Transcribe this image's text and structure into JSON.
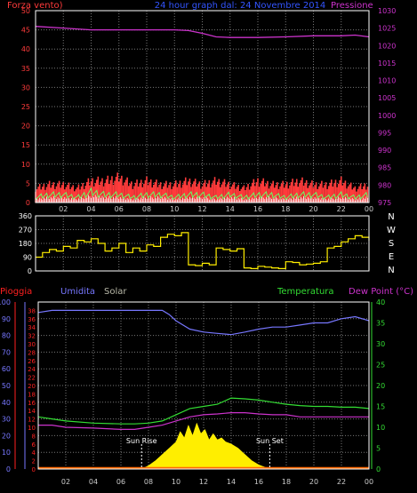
{
  "colors": {
    "background": "#000000",
    "frame": "#ffffff",
    "grid": "#777777",
    "wind": "#ff3b3b",
    "gust": "#66ff66",
    "wind_fill": "#ffffff",
    "pressure": "#cc33cc",
    "direction": "#ffee00",
    "rain": "#ff2020",
    "humidity": "#7777ff",
    "solar": "#ffee00",
    "temperature": "#33dd33",
    "dewpoint": "#cc33cc",
    "sun_marker": "#ffffff"
  },
  "chart_data": [
    {
      "type": "line",
      "name": "wind-pressure",
      "title": "24 hour graph dal:  24 Novembre 2014",
      "left_label": "Forza vento)",
      "right_label": "Pressione",
      "x_ticks": [
        "02",
        "04",
        "06",
        "08",
        "10",
        "12",
        "14",
        "16",
        "18",
        "20",
        "22",
        "00"
      ],
      "y_left": {
        "range": [
          0,
          50
        ],
        "ticks": [
          0,
          5,
          10,
          15,
          20,
          25,
          30,
          35,
          40,
          45,
          50
        ]
      },
      "y_right": {
        "range": [
          975,
          1030
        ],
        "ticks": [
          975,
          980,
          985,
          990,
          995,
          1000,
          1005,
          1010,
          1015,
          1020,
          1025,
          1030
        ]
      },
      "x_range": [
        0,
        24
      ],
      "series": [
        {
          "name": "Pressione",
          "axis": "right",
          "x": [
            0,
            2,
            4,
            6,
            8,
            9,
            10,
            11,
            12,
            13,
            14,
            15,
            16,
            18,
            20,
            22,
            23,
            24
          ],
          "y": [
            1025.5,
            1025,
            1024.5,
            1024.5,
            1024.5,
            1024.5,
            1024.5,
            1024.3,
            1023.5,
            1022.5,
            1022.3,
            1022.3,
            1022.3,
            1022.5,
            1022.8,
            1022.8,
            1023,
            1022.5
          ]
        },
        {
          "name": "wind",
          "axis": "left",
          "x": [
            0,
            1,
            2,
            3,
            4,
            5,
            6,
            7,
            8,
            9,
            10,
            11,
            12,
            13,
            14,
            15,
            16,
            17,
            18,
            19,
            20,
            21,
            22,
            23,
            24
          ],
          "y": [
            2,
            3,
            3,
            2,
            4,
            3,
            3,
            2,
            3,
            3,
            2,
            3,
            3,
            2,
            3,
            2,
            3,
            3,
            2,
            3,
            3,
            2,
            3,
            2,
            3
          ]
        },
        {
          "name": "gust",
          "axis": "left",
          "x": [
            0,
            1,
            2,
            3,
            4,
            5,
            6,
            7,
            8,
            9,
            10,
            11,
            12,
            13,
            14,
            15,
            16,
            17,
            18,
            19,
            20,
            21,
            22,
            23,
            24
          ],
          "y": [
            4,
            5,
            5,
            4,
            6,
            6,
            7,
            5,
            6,
            5,
            5,
            6,
            5,
            6,
            5,
            4,
            6,
            5,
            5,
            6,
            5,
            5,
            6,
            4,
            5
          ]
        }
      ]
    },
    {
      "type": "line",
      "name": "wind-direction",
      "y_range": [
        0,
        360
      ],
      "y_ticks": [
        0,
        90,
        180,
        270,
        360
      ],
      "x_ticks": [
        "02",
        "04",
        "06",
        "08",
        "10",
        "12",
        "14",
        "16",
        "18",
        "20",
        "22",
        "00"
      ],
      "x_range": [
        0,
        24
      ],
      "compass": [
        "N",
        "W",
        "S",
        "E",
        "N"
      ],
      "series": [
        {
          "name": "direction",
          "x": [
            0,
            0.5,
            1,
            1.5,
            2,
            2.5,
            3,
            3.5,
            4,
            4.5,
            5,
            5.5,
            6,
            6.5,
            7,
            7.5,
            8,
            8.5,
            9,
            9.5,
            10,
            10.5,
            11,
            11.5,
            12,
            12.5,
            13,
            13.5,
            14,
            14.5,
            15,
            15.5,
            16,
            16.5,
            17,
            17.5,
            18,
            18.5,
            19,
            19.5,
            20,
            20.5,
            21,
            21.5,
            22,
            22.5,
            23,
            23.5,
            24
          ],
          "y": [
            90,
            120,
            140,
            130,
            160,
            150,
            200,
            190,
            210,
            180,
            130,
            150,
            180,
            120,
            150,
            130,
            170,
            160,
            220,
            240,
            230,
            250,
            40,
            35,
            50,
            40,
            150,
            140,
            130,
            145,
            20,
            15,
            30,
            25,
            20,
            15,
            60,
            55,
            40,
            45,
            50,
            60,
            150,
            160,
            190,
            210,
            230,
            220,
            200
          ]
        }
      ]
    },
    {
      "type": "line",
      "name": "rain-humidity-temperature",
      "labels": [
        "Pioggia",
        "Umidita",
        "Solar",
        "Temperatura",
        "Dew Point (°C)"
      ],
      "annotations": [
        "Sun Rise",
        "Sun Set"
      ],
      "sunrise_x": 7.5,
      "sunset_x": 16.8,
      "x_ticks": [
        "02",
        "04",
        "06",
        "08",
        "10",
        "12",
        "14",
        "16",
        "18",
        "20",
        "22",
        "00"
      ],
      "x_range": [
        0,
        24
      ],
      "y_rain": {
        "range": [
          0,
          100
        ],
        "ticks": [
          0,
          10,
          20,
          30,
          40,
          50,
          60,
          70,
          80,
          90,
          100
        ]
      },
      "y_humidity": {
        "range": [
          0,
          40
        ],
        "ticks": [
          0,
          2,
          4,
          6,
          8,
          10,
          12,
          14,
          16,
          18,
          20,
          22,
          24,
          26,
          28,
          30,
          32,
          34,
          36,
          38
        ]
      },
      "y_temp": {
        "range": [
          0,
          40
        ],
        "ticks": [
          0,
          5,
          10,
          15,
          20,
          25,
          30,
          35,
          40
        ]
      },
      "series": [
        {
          "name": "Umidita",
          "axis": "humidity",
          "x": [
            0,
            1,
            2,
            4,
            6,
            8,
            9,
            9.5,
            10,
            10.5,
            11,
            12,
            13,
            14,
            15,
            16,
            17,
            18,
            19,
            20,
            21,
            22,
            23,
            24
          ],
          "y": [
            37.5,
            38,
            38,
            38,
            38,
            38,
            38,
            37,
            35.5,
            34.5,
            33.5,
            32.8,
            32.5,
            32.2,
            32.8,
            33.5,
            34,
            34,
            34.5,
            35,
            35,
            36,
            36.5,
            35.5
          ]
        },
        {
          "name": "Temperatura",
          "axis": "temp",
          "x": [
            0,
            1,
            2,
            4,
            6,
            7,
            8,
            9,
            10,
            11,
            12,
            13,
            14,
            15,
            16,
            17,
            18,
            19,
            20,
            21,
            22,
            23,
            24
          ],
          "y": [
            12.5,
            12,
            11.5,
            11,
            10.8,
            10.8,
            11,
            11.5,
            13,
            14.5,
            15,
            15.5,
            17,
            16.8,
            16.5,
            16,
            15.5,
            15.2,
            15,
            15,
            14.8,
            14.8,
            14.5
          ]
        },
        {
          "name": "Dew Point (°C)",
          "axis": "temp",
          "x": [
            0,
            1,
            2,
            4,
            6,
            7,
            8,
            9,
            10,
            11,
            12,
            13,
            14,
            15,
            16,
            17,
            18,
            19,
            20,
            21,
            22,
            23,
            24
          ],
          "y": [
            10.5,
            10.5,
            10,
            9.8,
            9.5,
            9.5,
            10,
            10.5,
            11.5,
            12.5,
            13,
            13.2,
            13.5,
            13.5,
            13.2,
            13,
            13,
            12.5,
            12.5,
            12.5,
            12.5,
            12.5,
            12.5
          ]
        },
        {
          "name": "Solar",
          "axis": "temp",
          "x": [
            7.5,
            8,
            8.5,
            9,
            9.5,
            10,
            10.3,
            10.6,
            10.9,
            11.2,
            11.5,
            11.8,
            12.1,
            12.4,
            12.7,
            13,
            13.3,
            13.6,
            14,
            14.5,
            15,
            15.5,
            16,
            16.8
          ],
          "y": [
            0,
            0.8,
            2,
            3.5,
            5,
            6.5,
            9,
            7.5,
            10.5,
            8,
            11,
            8.5,
            9.5,
            7,
            8.5,
            7,
            7.5,
            6.5,
            6,
            5,
            3.5,
            2,
            1,
            0
          ]
        },
        {
          "name": "Pioggia",
          "axis": "rain",
          "x": [
            0,
            24
          ],
          "y": [
            0,
            0
          ]
        }
      ]
    }
  ]
}
